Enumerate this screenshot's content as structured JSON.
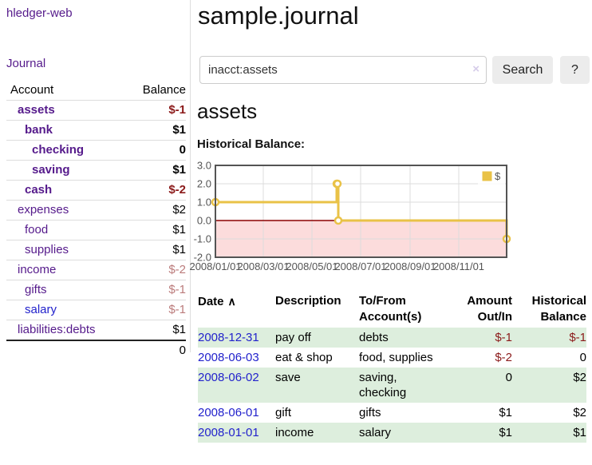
{
  "app": {
    "brand": "hledger-web",
    "nav": {
      "journal": "Journal"
    }
  },
  "sidebar": {
    "header": {
      "account": "Account",
      "balance": "Balance"
    },
    "accounts": [
      {
        "name": "assets",
        "balance": "$-1"
      },
      {
        "name": "bank",
        "balance": "$1"
      },
      {
        "name": "checking",
        "balance": "0"
      },
      {
        "name": "saving",
        "balance": "$1"
      },
      {
        "name": "cash",
        "balance": "$-2"
      },
      {
        "name": "expenses",
        "balance": "$2"
      },
      {
        "name": "food",
        "balance": "$1"
      },
      {
        "name": "supplies",
        "balance": "$1"
      },
      {
        "name": "income",
        "balance": "$-2"
      },
      {
        "name": "gifts",
        "balance": "$-1"
      },
      {
        "name": "salary",
        "balance": "$-1"
      },
      {
        "name": "liabilities:debts",
        "balance": "$1"
      }
    ],
    "total": "0"
  },
  "header": {
    "title": "sample.journal"
  },
  "search": {
    "value": "inacct:assets",
    "clear_icon": "×",
    "button": "Search",
    "help_button": "?"
  },
  "account_page": {
    "title": "assets",
    "chart_label": "Historical Balance:"
  },
  "chart_data": {
    "type": "line",
    "step": true,
    "title": "Historical Balance",
    "legend": "$",
    "legend_position": "top-right",
    "series": [
      {
        "name": "$",
        "points": [
          [
            "2008-01-01",
            1
          ],
          [
            "2008-06-01",
            2
          ],
          [
            "2008-06-02",
            2
          ],
          [
            "2008-06-03",
            0
          ],
          [
            "2008-12-31",
            -1
          ]
        ]
      }
    ],
    "xlim": [
      "2008-01-01",
      "2008-12-31"
    ],
    "ylim": [
      -2,
      3
    ],
    "y_ticks": [
      "3.0",
      "2.0",
      "1.0",
      "0.0",
      "-1.0",
      "-2.0"
    ],
    "x_ticks": [
      "2008/01/01",
      "2008/03/01",
      "2008/05/01",
      "2008/07/01",
      "2008/09/01",
      "2008/11/01"
    ],
    "grid": true,
    "colors": {
      "line": "#e9c247",
      "marker_fill": "#ffffff",
      "negative_region": "#fcdcdc",
      "zero_line": "#8b0000",
      "grid": "#dcdcdc",
      "border": "#545454",
      "tick_label": "#545454"
    }
  },
  "register": {
    "columns": {
      "date": "Date",
      "sort_indicator": "∧",
      "description": "Description",
      "accounts": "To/From Account(s)",
      "amount": "Amount Out/In",
      "balance": "Historical Balance"
    },
    "rows": [
      {
        "date": "2008-12-31",
        "description": "pay off",
        "accounts": "debts",
        "amount": "$-1",
        "balance": "$-1"
      },
      {
        "date": "2008-06-03",
        "description": "eat & shop",
        "accounts": "food, supplies",
        "amount": "$-2",
        "balance": "0"
      },
      {
        "date": "2008-06-02",
        "description": "save",
        "accounts": "saving, checking",
        "amount": "0",
        "balance": "$2"
      },
      {
        "date": "2008-06-01",
        "description": "gift",
        "accounts": "gifts",
        "amount": "$1",
        "balance": "$2"
      },
      {
        "date": "2008-01-01",
        "description": "income",
        "accounts": "salary",
        "amount": "$1",
        "balance": "$1"
      }
    ]
  }
}
